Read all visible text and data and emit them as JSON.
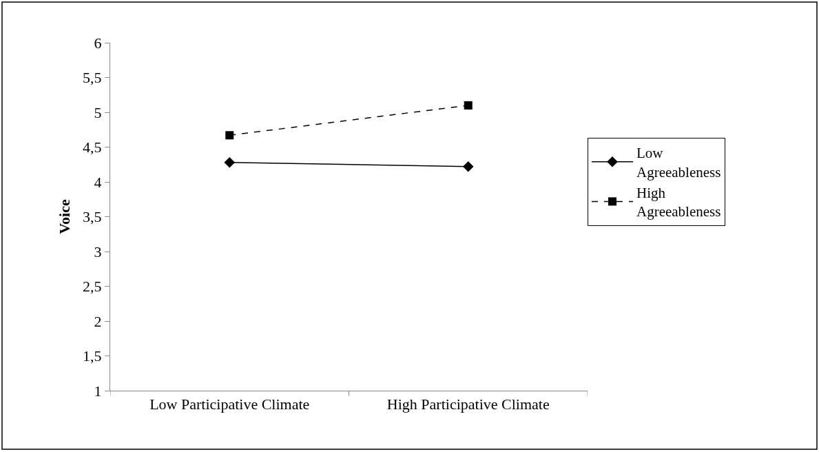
{
  "chart_data": {
    "type": "line",
    "ylabel": "Voice",
    "categories": [
      "Low Participative Climate",
      "High Participative Climate"
    ],
    "series": [
      {
        "name": "Low Agreeableness",
        "color": "#000000",
        "values": [
          4.28,
          4.22
        ],
        "marker": "diamond",
        "line_style": "solid"
      },
      {
        "name": "High Agreeableness",
        "color": "#000000",
        "values": [
          4.67,
          5.1
        ],
        "marker": "square",
        "line_style": "dashed"
      }
    ],
    "ylim": [
      1,
      6
    ],
    "yticks": [
      1,
      {
        "value": 1.5,
        "label": "1,5"
      },
      2,
      {
        "value": 2.5,
        "label": "2,5"
      },
      3,
      {
        "value": 3.5,
        "label": "3,5"
      },
      4,
      {
        "value": 4.5,
        "label": "4,5"
      },
      5,
      {
        "value": 5.5,
        "label": "5,5"
      },
      6
    ],
    "legend": "right"
  }
}
